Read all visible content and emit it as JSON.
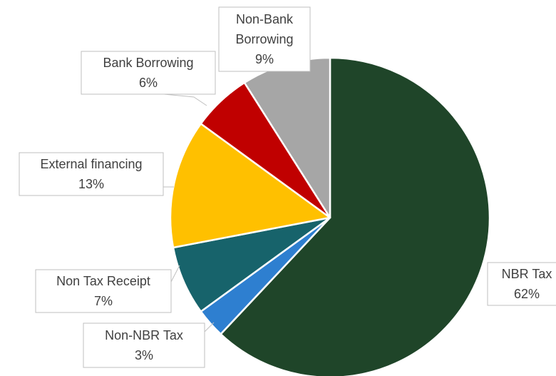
{
  "chart_data": {
    "type": "pie",
    "title": "",
    "slices": [
      {
        "label": "NBR Tax",
        "value": 62,
        "value_label": "62%",
        "color": "#1f4529"
      },
      {
        "label": "Non-NBR Tax",
        "value": 3,
        "value_label": "3%",
        "color": "#2e7fd0"
      },
      {
        "label": "Non Tax Receipt",
        "value": 7,
        "value_label": "7%",
        "color": "#17636b"
      },
      {
        "label": "External financing",
        "value": 13,
        "value_label": "13%",
        "color": "#ffc000"
      },
      {
        "label": "Bank Borrowing",
        "value": 6,
        "value_label": "6%",
        "color": "#c00000"
      },
      {
        "label": "Non-Bank Borrowing",
        "value": 9,
        "value_label": "9%",
        "color": "#a6a6a6"
      }
    ],
    "legend": "none",
    "data_labels": "callouts"
  }
}
